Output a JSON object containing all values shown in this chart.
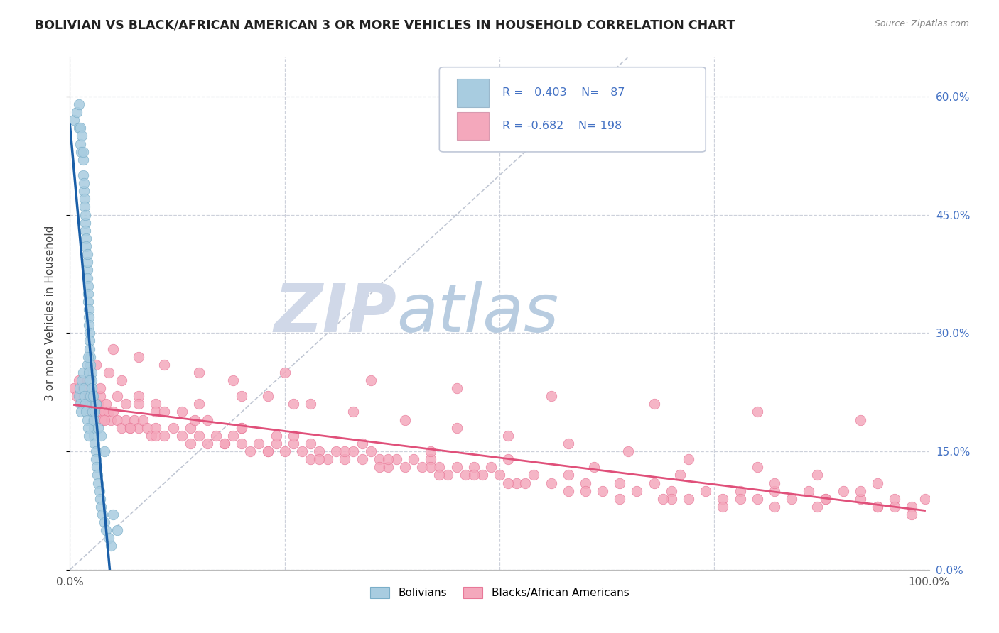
{
  "title": "BOLIVIAN VS BLACK/AFRICAN AMERICAN 3 OR MORE VEHICLES IN HOUSEHOLD CORRELATION CHART",
  "source": "Source: ZipAtlas.com",
  "ylabel": "3 or more Vehicles in Household",
  "watermark_zip": "ZIP",
  "watermark_atlas": "atlas",
  "xlim": [
    0.0,
    1.0
  ],
  "ylim": [
    0.0,
    0.65
  ],
  "ytick_vals": [
    0.0,
    0.15,
    0.3,
    0.45,
    0.6
  ],
  "ytick_labels": [
    "0.0%",
    "15.0%",
    "30.0%",
    "45.0%",
    "60.0%"
  ],
  "xtick_vals": [
    0.0,
    0.25,
    0.5,
    0.75,
    1.0
  ],
  "xtick_labels": [
    "0.0%",
    "",
    "",
    "",
    "100.0%"
  ],
  "legend_labels": [
    "Bolivians",
    "Blacks/African Americans"
  ],
  "blue_R": 0.403,
  "blue_N": 87,
  "pink_R": -0.682,
  "pink_N": 198,
  "blue_color": "#a8cce0",
  "pink_color": "#f4a8bc",
  "blue_edge_color": "#7aaec8",
  "pink_edge_color": "#e87898",
  "blue_line_color": "#1a5fa8",
  "pink_line_color": "#e0507a",
  "dashed_line_color": "#b0b8c8",
  "background_color": "#ffffff",
  "grid_color": "#c8ccd8",
  "title_color": "#222222",
  "source_color": "#888888",
  "blue_scatter_x": [
    0.005,
    0.008,
    0.01,
    0.01,
    0.012,
    0.012,
    0.013,
    0.014,
    0.015,
    0.015,
    0.015,
    0.016,
    0.016,
    0.017,
    0.017,
    0.018,
    0.018,
    0.018,
    0.019,
    0.019,
    0.02,
    0.02,
    0.02,
    0.02,
    0.021,
    0.021,
    0.021,
    0.022,
    0.022,
    0.022,
    0.023,
    0.023,
    0.023,
    0.024,
    0.024,
    0.025,
    0.025,
    0.025,
    0.026,
    0.026,
    0.027,
    0.027,
    0.028,
    0.028,
    0.029,
    0.03,
    0.03,
    0.031,
    0.032,
    0.033,
    0.034,
    0.035,
    0.036,
    0.038,
    0.04,
    0.042,
    0.045,
    0.048,
    0.05,
    0.055,
    0.01,
    0.011,
    0.012,
    0.013,
    0.014,
    0.015,
    0.016,
    0.017,
    0.018,
    0.019,
    0.02,
    0.021,
    0.022,
    0.024,
    0.026,
    0.028,
    0.03,
    0.033,
    0.036,
    0.04,
    0.02,
    0.021,
    0.022,
    0.023,
    0.025,
    0.027,
    0.029
  ],
  "blue_scatter_y": [
    0.57,
    0.58,
    0.56,
    0.59,
    0.54,
    0.56,
    0.53,
    0.55,
    0.52,
    0.53,
    0.5,
    0.48,
    0.49,
    0.47,
    0.46,
    0.44,
    0.45,
    0.43,
    0.42,
    0.41,
    0.38,
    0.39,
    0.37,
    0.4,
    0.36,
    0.35,
    0.34,
    0.33,
    0.32,
    0.31,
    0.3,
    0.29,
    0.28,
    0.27,
    0.26,
    0.25,
    0.24,
    0.23,
    0.22,
    0.21,
    0.2,
    0.19,
    0.18,
    0.17,
    0.16,
    0.15,
    0.14,
    0.13,
    0.12,
    0.11,
    0.1,
    0.09,
    0.08,
    0.07,
    0.06,
    0.05,
    0.04,
    0.03,
    0.07,
    0.05,
    0.22,
    0.23,
    0.21,
    0.2,
    0.24,
    0.25,
    0.23,
    0.22,
    0.21,
    0.2,
    0.19,
    0.18,
    0.17,
    0.22,
    0.2,
    0.19,
    0.21,
    0.18,
    0.17,
    0.15,
    0.26,
    0.27,
    0.25,
    0.24,
    0.23,
    0.22,
    0.2
  ],
  "pink_scatter_x": [
    0.005,
    0.008,
    0.01,
    0.012,
    0.013,
    0.015,
    0.016,
    0.018,
    0.02,
    0.022,
    0.025,
    0.028,
    0.03,
    0.033,
    0.035,
    0.038,
    0.04,
    0.042,
    0.045,
    0.048,
    0.05,
    0.055,
    0.06,
    0.065,
    0.07,
    0.075,
    0.08,
    0.085,
    0.09,
    0.095,
    0.1,
    0.11,
    0.12,
    0.13,
    0.14,
    0.15,
    0.16,
    0.17,
    0.18,
    0.19,
    0.2,
    0.21,
    0.22,
    0.23,
    0.24,
    0.25,
    0.26,
    0.27,
    0.28,
    0.29,
    0.3,
    0.31,
    0.32,
    0.33,
    0.34,
    0.35,
    0.36,
    0.37,
    0.38,
    0.39,
    0.4,
    0.41,
    0.42,
    0.43,
    0.44,
    0.45,
    0.46,
    0.47,
    0.48,
    0.49,
    0.5,
    0.52,
    0.54,
    0.56,
    0.58,
    0.6,
    0.62,
    0.64,
    0.66,
    0.68,
    0.7,
    0.72,
    0.74,
    0.76,
    0.78,
    0.8,
    0.82,
    0.84,
    0.86,
    0.88,
    0.9,
    0.92,
    0.94,
    0.96,
    0.98,
    0.995,
    0.03,
    0.045,
    0.06,
    0.08,
    0.1,
    0.13,
    0.16,
    0.2,
    0.24,
    0.28,
    0.32,
    0.37,
    0.42,
    0.47,
    0.53,
    0.58,
    0.64,
    0.7,
    0.76,
    0.82,
    0.88,
    0.94,
    0.98,
    0.05,
    0.08,
    0.11,
    0.15,
    0.19,
    0.23,
    0.28,
    0.33,
    0.39,
    0.45,
    0.51,
    0.58,
    0.65,
    0.72,
    0.8,
    0.87,
    0.94,
    0.04,
    0.07,
    0.1,
    0.14,
    0.18,
    0.23,
    0.29,
    0.36,
    0.43,
    0.51,
    0.6,
    0.69,
    0.78,
    0.87,
    0.96,
    0.035,
    0.065,
    0.1,
    0.145,
    0.2,
    0.26,
    0.34,
    0.42,
    0.51,
    0.61,
    0.71,
    0.82,
    0.92,
    0.25,
    0.35,
    0.45,
    0.56,
    0.68,
    0.8,
    0.92,
    0.02,
    0.035,
    0.055,
    0.08,
    0.11,
    0.15,
    0.2,
    0.26
  ],
  "pink_scatter_y": [
    0.23,
    0.22,
    0.24,
    0.22,
    0.21,
    0.23,
    0.22,
    0.21,
    0.22,
    0.21,
    0.2,
    0.21,
    0.2,
    0.21,
    0.2,
    0.19,
    0.2,
    0.21,
    0.2,
    0.19,
    0.2,
    0.19,
    0.18,
    0.19,
    0.18,
    0.19,
    0.18,
    0.19,
    0.18,
    0.17,
    0.18,
    0.17,
    0.18,
    0.17,
    0.18,
    0.17,
    0.16,
    0.17,
    0.16,
    0.17,
    0.16,
    0.15,
    0.16,
    0.15,
    0.16,
    0.15,
    0.16,
    0.15,
    0.14,
    0.15,
    0.14,
    0.15,
    0.14,
    0.15,
    0.14,
    0.15,
    0.14,
    0.13,
    0.14,
    0.13,
    0.14,
    0.13,
    0.14,
    0.13,
    0.12,
    0.13,
    0.12,
    0.13,
    0.12,
    0.13,
    0.12,
    0.11,
    0.12,
    0.11,
    0.12,
    0.11,
    0.1,
    0.11,
    0.1,
    0.11,
    0.1,
    0.09,
    0.1,
    0.09,
    0.1,
    0.09,
    0.1,
    0.09,
    0.1,
    0.09,
    0.1,
    0.09,
    0.08,
    0.09,
    0.08,
    0.09,
    0.26,
    0.25,
    0.24,
    0.22,
    0.21,
    0.2,
    0.19,
    0.18,
    0.17,
    0.16,
    0.15,
    0.14,
    0.13,
    0.12,
    0.11,
    0.1,
    0.09,
    0.09,
    0.08,
    0.08,
    0.09,
    0.08,
    0.07,
    0.28,
    0.27,
    0.26,
    0.25,
    0.24,
    0.22,
    0.21,
    0.2,
    0.19,
    0.18,
    0.17,
    0.16,
    0.15,
    0.14,
    0.13,
    0.12,
    0.11,
    0.19,
    0.18,
    0.17,
    0.16,
    0.16,
    0.15,
    0.14,
    0.13,
    0.12,
    0.11,
    0.1,
    0.09,
    0.09,
    0.08,
    0.08,
    0.22,
    0.21,
    0.2,
    0.19,
    0.18,
    0.17,
    0.16,
    0.15,
    0.14,
    0.13,
    0.12,
    0.11,
    0.1,
    0.25,
    0.24,
    0.23,
    0.22,
    0.21,
    0.2,
    0.19,
    0.24,
    0.23,
    0.22,
    0.21,
    0.2,
    0.21,
    0.22,
    0.21
  ]
}
